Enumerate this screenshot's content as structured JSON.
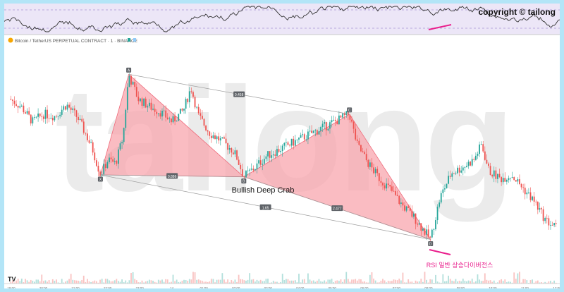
{
  "chart_data": {
    "type": "candlestick",
    "symbol_line": "Bitcoin / TetherUS PERPETUAL CONTRACT · 1 · BINANCE",
    "copyright": "copyright © tailong",
    "watermark": "tailong",
    "pattern_name": "Bullish Deep Crab",
    "divergence_note": "RSI 일반 상승다이버전스",
    "pattern_points": [
      {
        "label": "X",
        "t": 2.4,
        "price": 42.0
      },
      {
        "label": "A",
        "t": 3.15,
        "price": 95.0
      },
      {
        "label": "B",
        "t": 6.2,
        "price": 41.0
      },
      {
        "label": "C",
        "t": 9.0,
        "price": 74.0
      },
      {
        "label": "D",
        "t": 11.15,
        "price": 8.0
      }
    ],
    "ratios": [
      {
        "text": "0.886",
        "between": "X-B"
      },
      {
        "text": "0.458",
        "between": "A-C"
      },
      {
        "text": "2.477",
        "between": "B-D"
      },
      {
        "text": "1.65",
        "between": "X-D"
      }
    ],
    "time_axis_labels": [
      "19:00",
      "20:00",
      "21:00",
      "22:00",
      "23:00",
      "14",
      "01:00",
      "02:00",
      "03:00",
      "04:00",
      "05:00",
      "06:00",
      "07:00",
      "08:00",
      "09:00",
      "10:00",
      "11:00",
      "12:00"
    ],
    "price_trend": [
      [
        0.0,
        82
      ],
      [
        0.3,
        78
      ],
      [
        0.6,
        70
      ],
      [
        0.9,
        74
      ],
      [
        1.2,
        73
      ],
      [
        1.5,
        79
      ],
      [
        1.8,
        72
      ],
      [
        2.0,
        64
      ],
      [
        2.2,
        55
      ],
      [
        2.4,
        42
      ],
      [
        2.6,
        50
      ],
      [
        2.8,
        48
      ],
      [
        3.0,
        62
      ],
      [
        3.15,
        95
      ],
      [
        3.4,
        82
      ],
      [
        3.7,
        78
      ],
      [
        4.0,
        75
      ],
      [
        4.3,
        70
      ],
      [
        4.6,
        76
      ],
      [
        4.8,
        88
      ],
      [
        5.0,
        73
      ],
      [
        5.3,
        64
      ],
      [
        5.6,
        60
      ],
      [
        5.9,
        55
      ],
      [
        6.0,
        52
      ],
      [
        6.2,
        41
      ],
      [
        6.5,
        46
      ],
      [
        6.8,
        52
      ],
      [
        7.2,
        56
      ],
      [
        7.6,
        60
      ],
      [
        8.0,
        64
      ],
      [
        8.4,
        68
      ],
      [
        8.7,
        71
      ],
      [
        9.0,
        74
      ],
      [
        9.2,
        58
      ],
      [
        9.5,
        48
      ],
      [
        9.8,
        40
      ],
      [
        10.1,
        34
      ],
      [
        10.4,
        26
      ],
      [
        10.7,
        20
      ],
      [
        11.0,
        12
      ],
      [
        11.15,
        8
      ],
      [
        11.4,
        30
      ],
      [
        11.7,
        43
      ],
      [
        12.0,
        46
      ],
      [
        12.3,
        50
      ],
      [
        12.5,
        58
      ],
      [
        12.7,
        44
      ],
      [
        13.0,
        40
      ],
      [
        13.3,
        42
      ],
      [
        13.6,
        35
      ],
      [
        13.9,
        28
      ],
      [
        14.2,
        18
      ],
      [
        14.5,
        14
      ]
    ],
    "price_range": [
      0,
      110
    ],
    "time_range": [
      0,
      14.5
    ],
    "colors": {
      "up": "#26a69a",
      "down": "#ef5350",
      "pattern_fill": "#f8a5ae",
      "pattern_stroke": "#ef6b7b",
      "divergence": "#e91e8c",
      "rsi_band": "#ece6f7",
      "rsi_line": "#333333",
      "frame": "#b3e5f7"
    }
  }
}
